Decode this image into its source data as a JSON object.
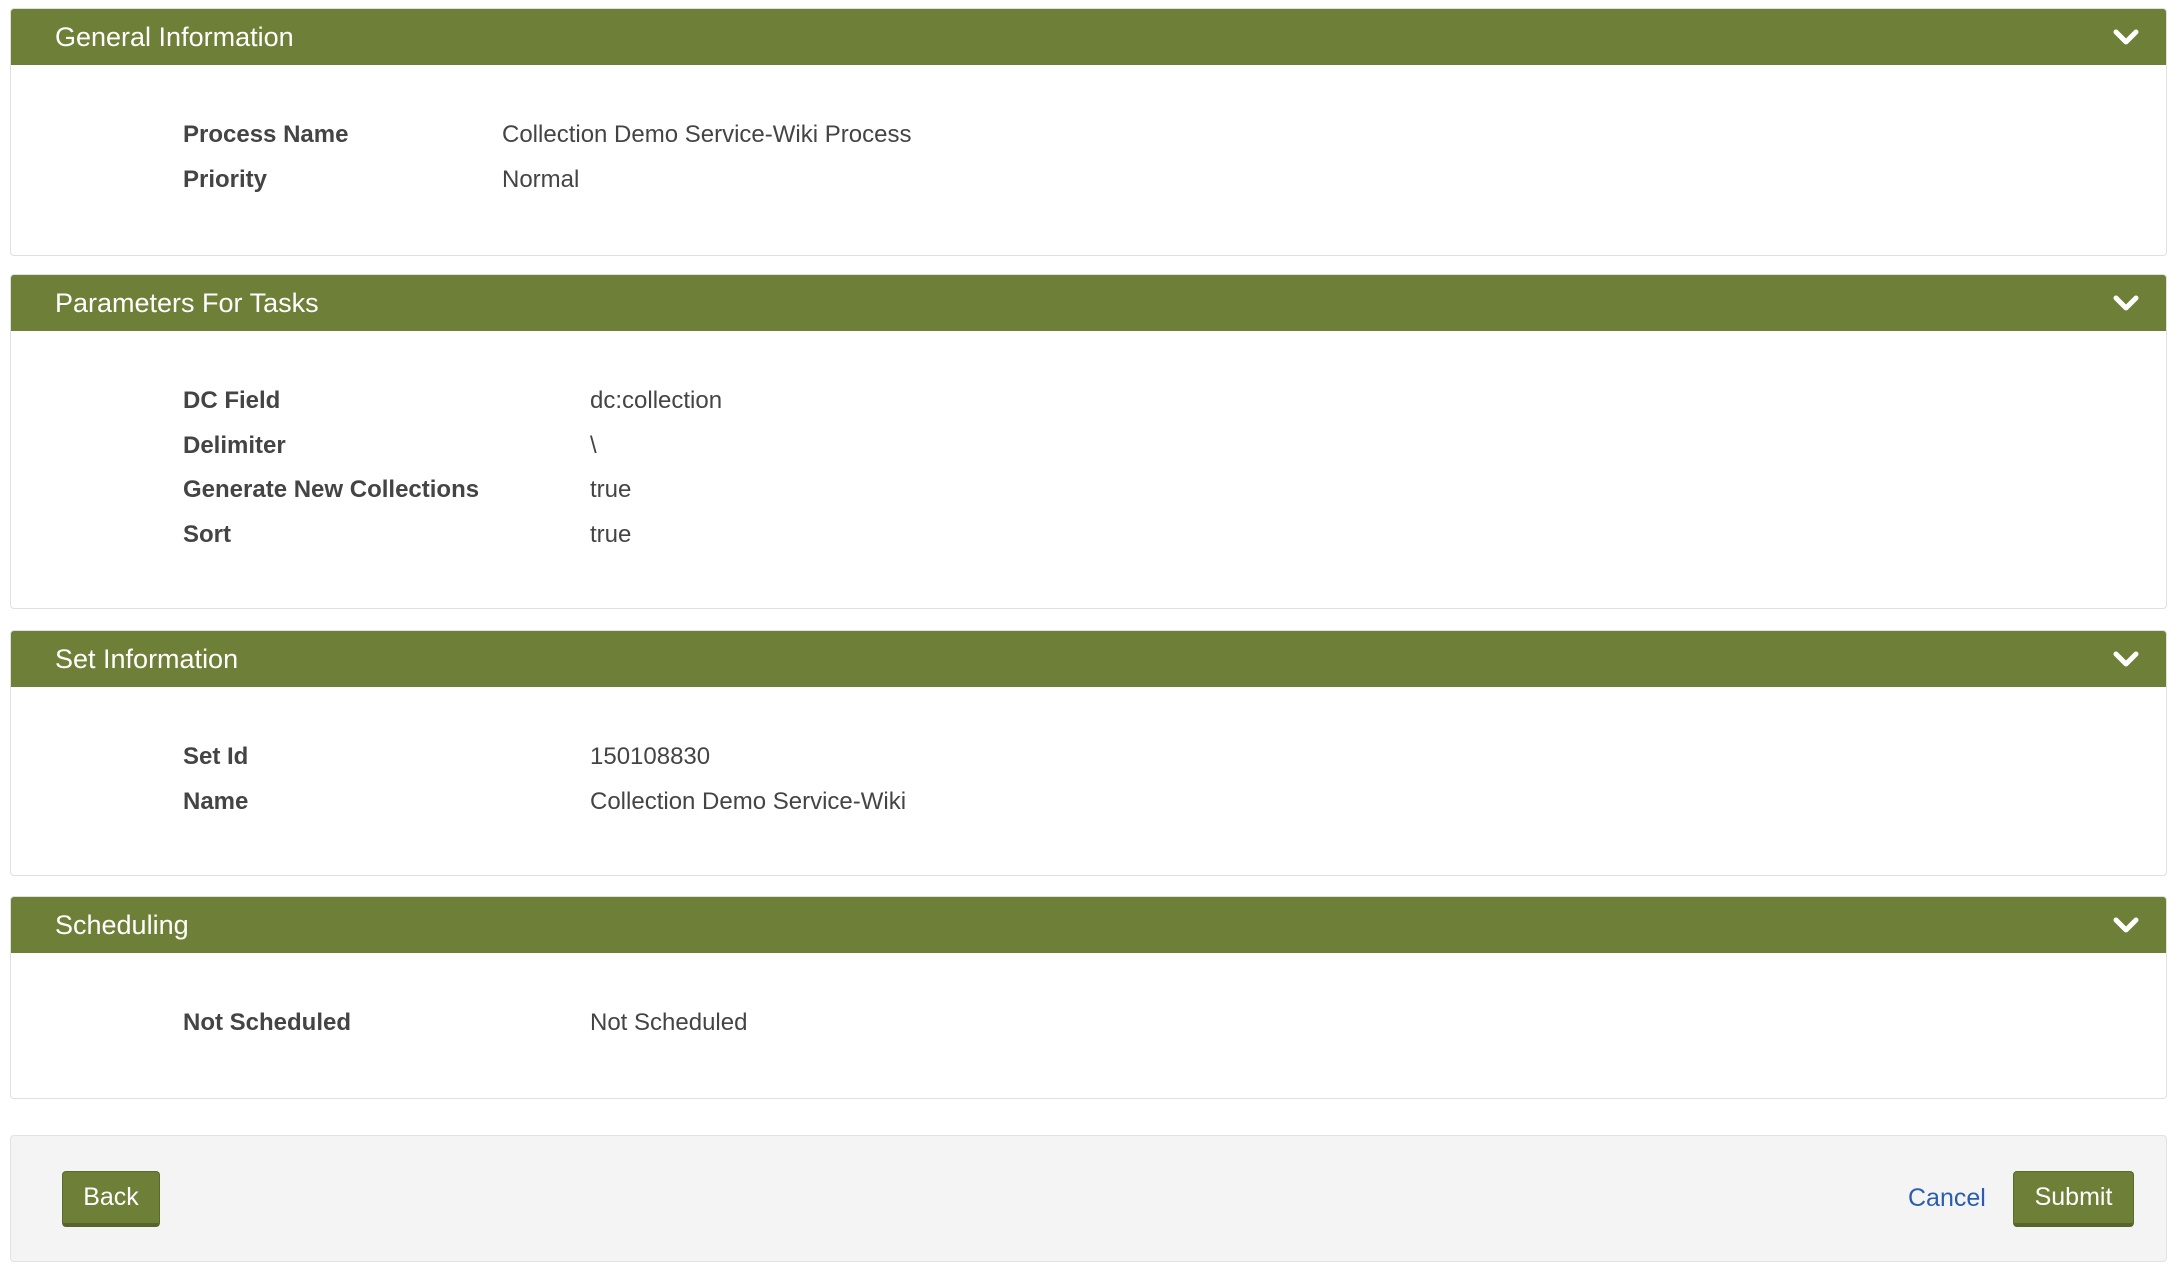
{
  "colors": {
    "header": "#6e7f37",
    "link": "#2a5db0"
  },
  "sections": [
    {
      "title": "General Information",
      "icon": "chevron-down-icon",
      "rows": [
        {
          "label": "Process Name",
          "value": "Collection Demo Service-Wiki Process"
        },
        {
          "label": "Priority",
          "value": "Normal"
        }
      ]
    },
    {
      "title": "Parameters For Tasks",
      "icon": "chevron-down-icon",
      "rows": [
        {
          "label": "DC Field",
          "value": "dc:collection"
        },
        {
          "label": "Delimiter",
          "value": "\\"
        },
        {
          "label": "Generate New Collections",
          "value": "true"
        },
        {
          "label": "Sort",
          "value": "true"
        }
      ]
    },
    {
      "title": "Set Information",
      "icon": "chevron-down-icon",
      "rows": [
        {
          "label": "Set Id",
          "value": "150108830"
        },
        {
          "label": "Name",
          "value": "Collection Demo Service-Wiki"
        }
      ]
    },
    {
      "title": "Scheduling",
      "icon": "chevron-down-icon",
      "rows": [
        {
          "label": "Not Scheduled",
          "value": "Not Scheduled"
        }
      ]
    }
  ],
  "footer": {
    "back": "Back",
    "cancel": "Cancel",
    "submit": "Submit"
  }
}
